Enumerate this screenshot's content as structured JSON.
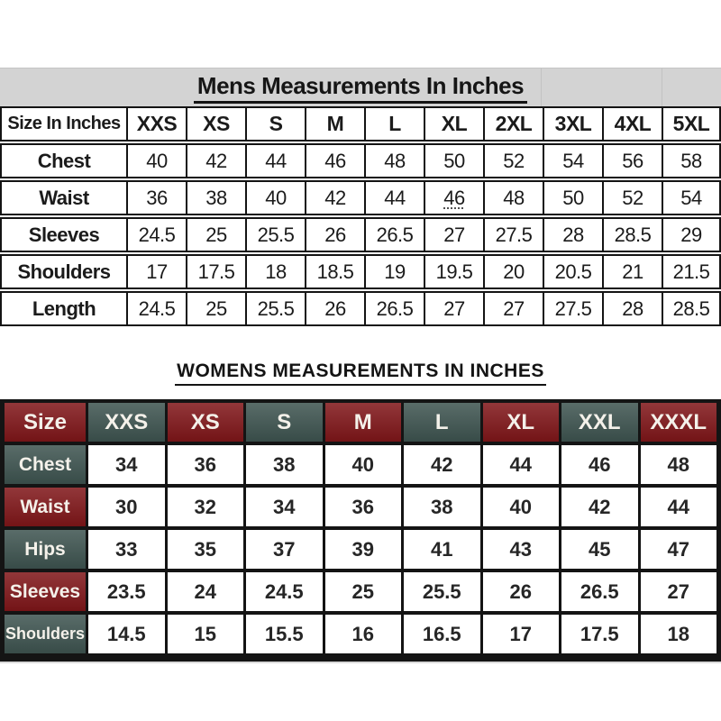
{
  "page": {
    "background": "#ffffff"
  },
  "mens_table": {
    "title": "Mens Measurements In Inches",
    "header": [
      "Size In Inches",
      "XXS",
      "XS",
      "S",
      "M",
      "L",
      "XL",
      "2XL",
      "3XL",
      "4XL",
      "5XL"
    ],
    "rows": [
      {
        "label": "Chest",
        "values": [
          "40",
          "42",
          "44",
          "46",
          "48",
          "50",
          "52",
          "54",
          "56",
          "58"
        ]
      },
      {
        "label": "Waist",
        "values": [
          "36",
          "38",
          "40",
          "42",
          "44",
          "46",
          "48",
          "50",
          "52",
          "54"
        ]
      },
      {
        "label": "Sleeves",
        "values": [
          "24.5",
          "25",
          "25.5",
          "26",
          "26.5",
          "27",
          "27.5",
          "28",
          "28.5",
          "29"
        ]
      },
      {
        "label": "Shoulders",
        "values": [
          "17",
          "17.5",
          "18",
          "18.5",
          "19",
          "19.5",
          "20",
          "20.5",
          "21",
          "21.5"
        ]
      },
      {
        "label": "Length",
        "values": [
          "24.5",
          "25",
          "25.5",
          "26",
          "26.5",
          "27",
          "27",
          "27.5",
          "28",
          "28.5"
        ]
      }
    ],
    "dotted_underline_cell": {
      "row_index": 1,
      "col_index": 5,
      "value": "46"
    },
    "colors": {
      "title_bar_bg": "#d3d3d3",
      "border": "#141414",
      "text": "#1b1b1b"
    }
  },
  "womens_table": {
    "title": "WOMENS MEASUREMENTS IN INCHES",
    "header": [
      "Size",
      "XXS",
      "XS",
      "S",
      "M",
      "L",
      "XL",
      "XXL",
      "XXXL"
    ],
    "rows": [
      {
        "label": "Chest",
        "values": [
          "34",
          "36",
          "38",
          "40",
          "42",
          "44",
          "46",
          "48"
        ]
      },
      {
        "label": "Waist",
        "values": [
          "30",
          "32",
          "34",
          "36",
          "38",
          "40",
          "42",
          "44"
        ]
      },
      {
        "label": "Hips",
        "values": [
          "33",
          "35",
          "37",
          "39",
          "41",
          "43",
          "45",
          "47"
        ]
      },
      {
        "label": "Sleeves",
        "values": [
          "23.5",
          "24",
          "24.5",
          "25",
          "25.5",
          "26",
          "26.5",
          "27"
        ]
      },
      {
        "label": "Shoulders",
        "values": [
          "14.5",
          "15",
          "15.5",
          "16",
          "16.5",
          "17",
          "17.5",
          "18"
        ]
      }
    ],
    "colors": {
      "red": "#801619",
      "teal": "#3e5450",
      "gap_black": "#0c0c0c",
      "cell_bg": "#ffffff",
      "header_text": "#f4f1ea",
      "value_text": "#262626"
    }
  }
}
